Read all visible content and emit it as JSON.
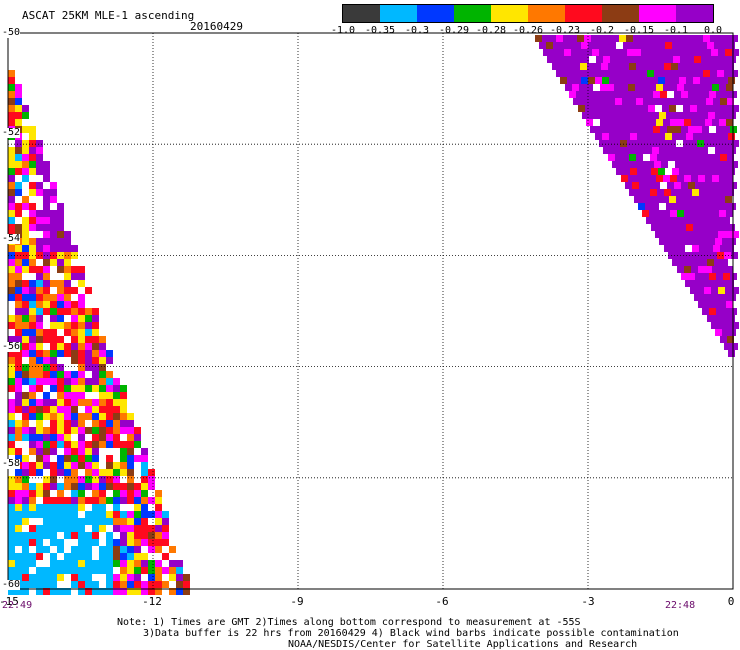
{
  "header": {
    "title": "ASCAT 25KM MLE-1 ascending",
    "date": "20160429"
  },
  "colorbar": {
    "colors": [
      "#3a3a3a",
      "#00b8ff",
      "#0038ff",
      "#00b400",
      "#ffe600",
      "#ff7800",
      "#ff0a1e",
      "#8c3c14",
      "#ff00ff",
      "#9600c8"
    ],
    "labels": [
      "-1.0",
      "-0.35",
      "-0.3",
      "-0.29",
      "-0.28",
      "-0.26",
      "-0.23",
      "-0.2",
      "-0.15",
      "-0.1",
      "0.0"
    ]
  },
  "axes": {
    "x_ticks": [
      "-15",
      "-12",
      "-9",
      "-6",
      "-3",
      "0"
    ],
    "y_ticks": [
      "-50",
      "-52",
      "-54",
      "-56",
      "-58",
      "-60"
    ],
    "x_range": [
      -15,
      0
    ],
    "y_range": [
      -60,
      -50
    ]
  },
  "times": {
    "left": "22:49",
    "right": "22:48"
  },
  "notes": {
    "line1": "Note: 1) Times are GMT 2)Times along bottom correspond to measurement at -55S",
    "line2": "3)Data buffer is 22 hrs from 20160429 4) Black wind barbs indicate possible contamination",
    "line3": "NOAA/NESDIS/Center for Satellite Applications and Research"
  }
}
